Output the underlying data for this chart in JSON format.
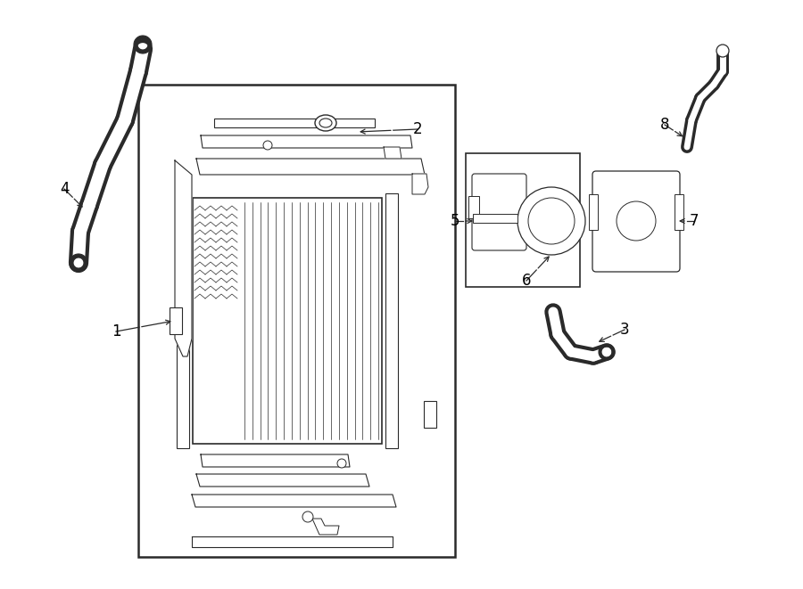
{
  "bg_color": "#ffffff",
  "line_color": "#2a2a2a",
  "label_color": "#000000",
  "fig_w": 9.0,
  "fig_h": 6.61,
  "dpi": 100
}
